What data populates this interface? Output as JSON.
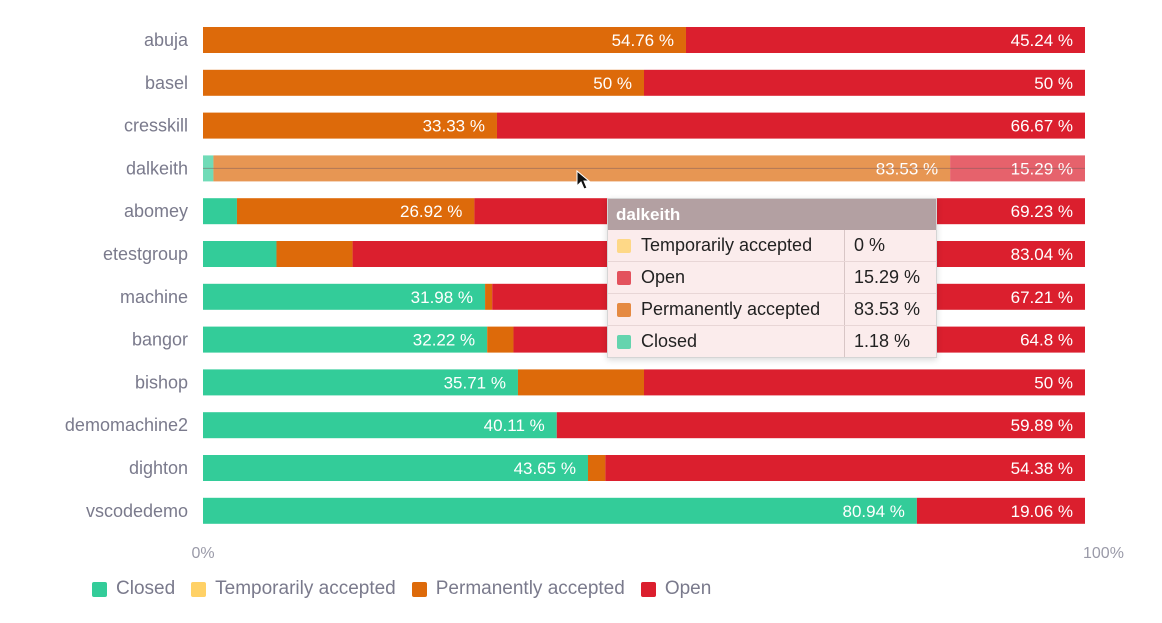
{
  "chart_data": {
    "type": "bar",
    "orientation": "horizontal",
    "stacked": "percent",
    "categories": [
      "abuja",
      "basel",
      "cresskill",
      "dalkeith",
      "abomey",
      "etestgroup",
      "machine",
      "bangor",
      "bishop",
      "demomachine2",
      "dighton",
      "vscodedemo"
    ],
    "series": [
      {
        "name": "Closed",
        "key": "closed",
        "values": [
          0,
          0,
          0,
          1.18,
          3.85,
          8.33,
          31.98,
          32.22,
          35.71,
          40.11,
          43.65,
          80.94
        ],
        "labels": [
          "",
          "",
          "",
          "",
          "",
          "",
          "31.98 %",
          "32.22 %",
          "35.71 %",
          "40.11 %",
          "43.65 %",
          "80.94 %"
        ]
      },
      {
        "name": "Temporarily accepted",
        "key": "temp",
        "values": [
          0,
          0,
          0,
          0,
          0,
          0,
          0,
          0,
          0,
          0,
          0,
          0
        ],
        "labels": [
          "",
          "",
          "",
          "",
          "",
          "",
          "",
          "",
          "",
          "",
          "",
          ""
        ]
      },
      {
        "name": "Permanently accepted",
        "key": "perm",
        "values": [
          54.76,
          50,
          33.33,
          83.53,
          26.92,
          8.63,
          0.81,
          2.98,
          14.29,
          0,
          1.97,
          0
        ],
        "labels": [
          "54.76 %",
          "50 %",
          "33.33 %",
          "83.53 %",
          "26.92 %",
          "",
          "",
          "",
          "",
          "",
          "",
          ""
        ]
      },
      {
        "name": "Open",
        "key": "open",
        "values": [
          45.24,
          50,
          66.67,
          15.29,
          69.23,
          83.04,
          67.21,
          64.8,
          50,
          59.89,
          54.38,
          19.06
        ],
        "labels": [
          "45.24 %",
          "50 %",
          "66.67 %",
          "15.29 %",
          "69.23 %",
          "83.04 %",
          "67.21 %",
          "64.8 %",
          "50 %",
          "59.89 %",
          "54.38 %",
          "19.06 %"
        ]
      }
    ],
    "xlim": [
      0,
      100
    ],
    "x_ticks": [
      "0%",
      "100%"
    ],
    "highlighted_category": "dalkeith",
    "legend_position": "bottom-left"
  },
  "colors": {
    "closed": "#33cc99",
    "temp": "#ffd166",
    "perm": "#dd6a0a",
    "open": "#db1f2e"
  },
  "legend": [
    {
      "label": "Closed",
      "key": "closed"
    },
    {
      "label": "Temporarily accepted",
      "key": "temp"
    },
    {
      "label": "Permanently accepted",
      "key": "perm"
    },
    {
      "label": "Open",
      "key": "open"
    }
  ],
  "tooltip": {
    "title": "dalkeith",
    "rows": [
      {
        "label": "Temporarily accepted",
        "value": "0 %",
        "key": "temp"
      },
      {
        "label": "Open",
        "value": "15.29 %",
        "key": "open"
      },
      {
        "label": "Permanently accepted",
        "value": "83.53 %",
        "key": "perm"
      },
      {
        "label": "Closed",
        "value": "1.18 %",
        "key": "closed"
      }
    ]
  }
}
